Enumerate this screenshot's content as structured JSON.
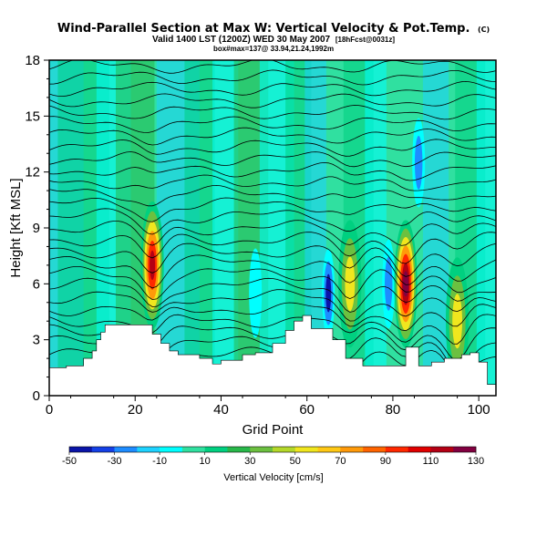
{
  "chart_data": {
    "type": "heatmap",
    "title": "Wind-Parallel Section at Max W: Vertical Velocity & Pot.Temp.",
    "title_mark": "(C)",
    "subtitle_line1": "Valid 1400 LST (1200Z) WED 30 May 2007",
    "subtitle_line1_small": "[18hFcst@0031z]",
    "subtitle_line2": "box#max=137@ 33.94,21.24,1992m",
    "xlabel": "Grid Point",
    "ylabel": "Height [Kft MSL]",
    "xlim": [
      0,
      104
    ],
    "ylim": [
      0,
      18
    ],
    "x_ticks": [
      "0",
      "20",
      "40",
      "60",
      "80",
      "100"
    ],
    "y_ticks": [
      "0",
      "3",
      "6",
      "9",
      "12",
      "15",
      "18"
    ],
    "colorbar": {
      "label": "Vertical Velocity [cm/s]",
      "tick_labels": [
        "-50",
        "-30",
        "-10",
        "10",
        "30",
        "50",
        "70",
        "90",
        "110",
        "130"
      ],
      "colors": [
        "#0a14a8",
        "#1440e6",
        "#1e8cff",
        "#1ed2ff",
        "#00ffff",
        "#30e0a0",
        "#00d080",
        "#28b84a",
        "#6cc040",
        "#b4d82a",
        "#f0e61e",
        "#ffc814",
        "#ff9a0a",
        "#ff6400",
        "#ff2800",
        "#e00000",
        "#b40014",
        "#820040"
      ]
    },
    "terrain_top_kft": [
      [
        0,
        1.5
      ],
      [
        4,
        1.6
      ],
      [
        8,
        2.0
      ],
      [
        10,
        2.4
      ],
      [
        11,
        3.0
      ],
      [
        12,
        3.4
      ],
      [
        13,
        3.8
      ],
      [
        22,
        3.8
      ],
      [
        24,
        3.3
      ],
      [
        26,
        2.8
      ],
      [
        28,
        2.4
      ],
      [
        30,
        2.2
      ],
      [
        35,
        2.0
      ],
      [
        38,
        1.7
      ],
      [
        40,
        1.9
      ],
      [
        45,
        2.2
      ],
      [
        48,
        2.3
      ],
      [
        52,
        2.8
      ],
      [
        55,
        3.5
      ],
      [
        57,
        4.0
      ],
      [
        59,
        4.3
      ],
      [
        61,
        3.6
      ],
      [
        64,
        3.6
      ],
      [
        66,
        3.0
      ],
      [
        69,
        2.0
      ],
      [
        73,
        1.6
      ],
      [
        81,
        1.6
      ],
      [
        83,
        2.6
      ],
      [
        85,
        2.6
      ],
      [
        86,
        1.6
      ],
      [
        89,
        1.8
      ],
      [
        92,
        2.0
      ],
      [
        96,
        2.2
      ],
      [
        98,
        2.3
      ],
      [
        100,
        1.8
      ],
      [
        102,
        0.6
      ],
      [
        104,
        0.3
      ]
    ],
    "updraft_cores": [
      {
        "x": 24,
        "height_kft": 7.0,
        "peak_cm_s": 110
      },
      {
        "x": 70,
        "height_kft": 6.0,
        "peak_cm_s": 60
      },
      {
        "x": 83,
        "height_kft": 6.0,
        "peak_cm_s": 130
      },
      {
        "x": 95,
        "height_kft": 4.0,
        "peak_cm_s": 60
      }
    ],
    "downdraft_cores": [
      {
        "x": 65,
        "height_kft": 5.5,
        "peak_cm_s": -50
      },
      {
        "x": 79,
        "height_kft": 6.0,
        "peak_cm_s": -30
      },
      {
        "x": 48,
        "height_kft": 5.5,
        "peak_cm_s": -20
      },
      {
        "x": 86,
        "height_kft": 12.5,
        "peak_cm_s": -30
      }
    ],
    "isentrope_count": 26
  }
}
